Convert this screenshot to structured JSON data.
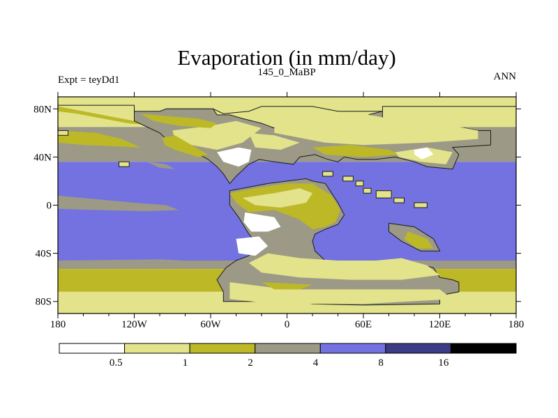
{
  "chart_data": {
    "type": "heatmap",
    "title": "Evaporation (in mm/day)",
    "left_string": "Expt = teyDd1",
    "center_string": "145_0_MaBP",
    "right_string": "ANN",
    "x_ticks": [
      {
        "value": -180,
        "label": "180"
      },
      {
        "value": -120,
        "label": "120W"
      },
      {
        "value": -60,
        "label": "60W"
      },
      {
        "value": 0,
        "label": "0"
      },
      {
        "value": 60,
        "label": "60E"
      },
      {
        "value": 120,
        "label": "120E"
      },
      {
        "value": 180,
        "label": "180"
      }
    ],
    "y_ticks": [
      {
        "value": 80,
        "label": "80N"
      },
      {
        "value": 40,
        "label": "40N"
      },
      {
        "value": 0,
        "label": "0"
      },
      {
        "value": -40,
        "label": "40S"
      },
      {
        "value": -80,
        "label": "80S"
      }
    ],
    "xlim": [
      -180,
      180
    ],
    "ylim": [
      -90,
      90
    ],
    "colorbar": {
      "levels": [
        0.5,
        1,
        2,
        4,
        8,
        16
      ],
      "level_labels": [
        "0.5",
        "1",
        "2",
        "4",
        "8",
        "16"
      ],
      "colors": [
        "#ffffff",
        "#e3e38b",
        "#bdb826",
        "#9c9a86",
        "#7372e0",
        "#3c3c86",
        "#000000"
      ]
    },
    "ocean_colors": {
      "tropical": "#7372e0",
      "subtropical": "#9c9a86",
      "southern": "#bdb826",
      "polar": "#e3e38b"
    },
    "land_colors": {
      "desert": "#ffffff",
      "arid": "#e3e38b",
      "semi_arid": "#bdb826",
      "humid": "#9c9a86"
    }
  }
}
